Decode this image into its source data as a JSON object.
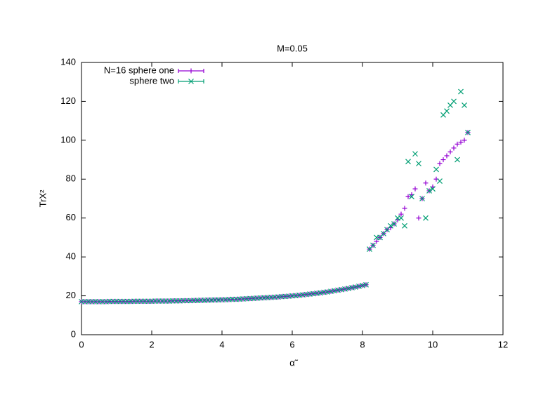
{
  "chart_data": {
    "type": "scatter",
    "title": "M=0.05",
    "xlabel": "α̃",
    "ylabel": "TrX²",
    "x": [
      0.0,
      0.1,
      0.2,
      0.3,
      0.4,
      0.5,
      0.6,
      0.7,
      0.8,
      0.9,
      1.0,
      1.1,
      1.2,
      1.3,
      1.4,
      1.5,
      1.6,
      1.7,
      1.8,
      1.9,
      2.0,
      2.1,
      2.2,
      2.3,
      2.4,
      2.5,
      2.6,
      2.7,
      2.8,
      2.9,
      3.0,
      3.1,
      3.2,
      3.3,
      3.4,
      3.5,
      3.6,
      3.7,
      3.8,
      3.9,
      4.0,
      4.1,
      4.2,
      4.3,
      4.4,
      4.5,
      4.6,
      4.7,
      4.8,
      4.9,
      5.0,
      5.1,
      5.2,
      5.3,
      5.4,
      5.5,
      5.6,
      5.7,
      5.8,
      5.9,
      6.0,
      6.1,
      6.2,
      6.3,
      6.4,
      6.5,
      6.6,
      6.7,
      6.8,
      6.9,
      7.0,
      7.1,
      7.2,
      7.3,
      7.4,
      7.5,
      7.6,
      7.7,
      7.8,
      7.9,
      8.0,
      8.1,
      8.2,
      8.3,
      8.4,
      8.5,
      8.6,
      8.7,
      8.8,
      8.9,
      9.0,
      9.1,
      9.2,
      9.3,
      9.4,
      9.5,
      9.6,
      9.7,
      9.8,
      9.9,
      10.0,
      10.1,
      10.2,
      10.3,
      10.4,
      10.5,
      10.6,
      10.7,
      10.8,
      10.9,
      11.0
    ],
    "series": [
      {
        "name": "N=16 sphere one",
        "color": "#9400d3",
        "marker": "plus",
        "values": [
          17.0,
          17.0,
          17.0,
          17.0,
          17.0,
          17.0,
          17.0,
          17.0,
          17.1,
          17.1,
          17.1,
          17.1,
          17.1,
          17.1,
          17.1,
          17.2,
          17.2,
          17.2,
          17.2,
          17.2,
          17.2,
          17.3,
          17.3,
          17.3,
          17.3,
          17.3,
          17.4,
          17.4,
          17.4,
          17.5,
          17.5,
          17.5,
          17.6,
          17.6,
          17.7,
          17.7,
          17.8,
          17.8,
          17.9,
          17.9,
          18.0,
          18.0,
          18.1,
          18.2,
          18.2,
          18.3,
          18.4,
          18.5,
          18.6,
          18.7,
          18.8,
          18.9,
          19.0,
          19.1,
          19.2,
          19.3,
          19.4,
          19.6,
          19.7,
          19.8,
          20.0,
          20.1,
          20.3,
          20.5,
          20.7,
          20.9,
          21.1,
          21.3,
          21.5,
          21.8,
          22.0,
          22.3,
          22.6,
          22.9,
          23.2,
          23.5,
          23.8,
          24.2,
          24.5,
          24.9,
          25.3,
          25.7,
          44,
          46,
          48,
          50,
          52,
          54,
          55,
          57,
          59,
          62,
          65,
          71,
          72,
          75,
          60,
          70,
          78,
          74,
          76,
          80,
          88,
          90,
          92,
          94,
          96,
          98,
          99,
          100,
          104
        ]
      },
      {
        "name": "sphere two",
        "color": "#009e73",
        "marker": "cross",
        "values": [
          17.0,
          17.0,
          17.0,
          17.0,
          17.0,
          17.0,
          17.0,
          17.0,
          17.1,
          17.1,
          17.1,
          17.1,
          17.1,
          17.1,
          17.1,
          17.2,
          17.2,
          17.2,
          17.2,
          17.2,
          17.2,
          17.3,
          17.3,
          17.3,
          17.3,
          17.3,
          17.4,
          17.4,
          17.4,
          17.5,
          17.5,
          17.5,
          17.6,
          17.6,
          17.7,
          17.7,
          17.8,
          17.8,
          17.9,
          17.9,
          18.0,
          18.0,
          18.1,
          18.2,
          18.2,
          18.3,
          18.4,
          18.5,
          18.6,
          18.7,
          18.8,
          18.9,
          19.0,
          19.1,
          19.2,
          19.3,
          19.4,
          19.6,
          19.7,
          19.8,
          20.0,
          20.1,
          20.3,
          20.5,
          20.7,
          20.9,
          21.1,
          21.3,
          21.5,
          21.8,
          22.0,
          22.3,
          22.6,
          22.9,
          23.2,
          23.5,
          23.8,
          24.2,
          24.5,
          24.9,
          25.3,
          25.7,
          44,
          46,
          50,
          50,
          52,
          54,
          56,
          57,
          60,
          60,
          56,
          89,
          71,
          93,
          88,
          70,
          60,
          74,
          75,
          85,
          79,
          113,
          115,
          118,
          120,
          90,
          125,
          118,
          104
        ]
      }
    ],
    "xlim": [
      0,
      12
    ],
    "xticks": [
      0,
      2,
      4,
      6,
      8,
      10,
      12
    ],
    "ylim": [
      0,
      140
    ],
    "yticks": [
      0,
      20,
      40,
      60,
      80,
      100,
      120,
      140
    ],
    "legend": "top-left",
    "grid": false
  }
}
